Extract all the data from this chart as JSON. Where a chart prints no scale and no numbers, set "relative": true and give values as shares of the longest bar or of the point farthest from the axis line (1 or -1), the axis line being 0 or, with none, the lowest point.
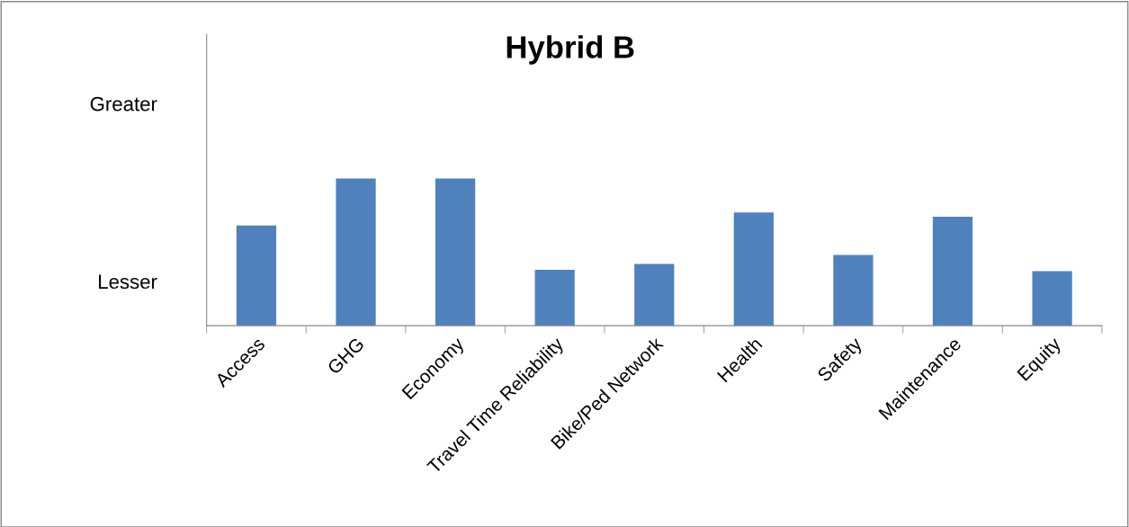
{
  "chart_data": {
    "type": "bar",
    "title": "Hybrid B",
    "categories": [
      "Access",
      "GHG",
      "Economy",
      "Travel Time Reliability",
      "Bike/Ped Network",
      "Health",
      "Safety",
      "Maintenance",
      "Equity"
    ],
    "values": [
      0.68,
      1,
      1,
      0.38,
      0.42,
      0.77,
      0.48,
      0.74,
      0.37
    ],
    "color": "#4f81bd",
    "relative": true,
    "annotations": [
      "Greater",
      "Lesser"
    ],
    "grid": false,
    "legend": false
  }
}
